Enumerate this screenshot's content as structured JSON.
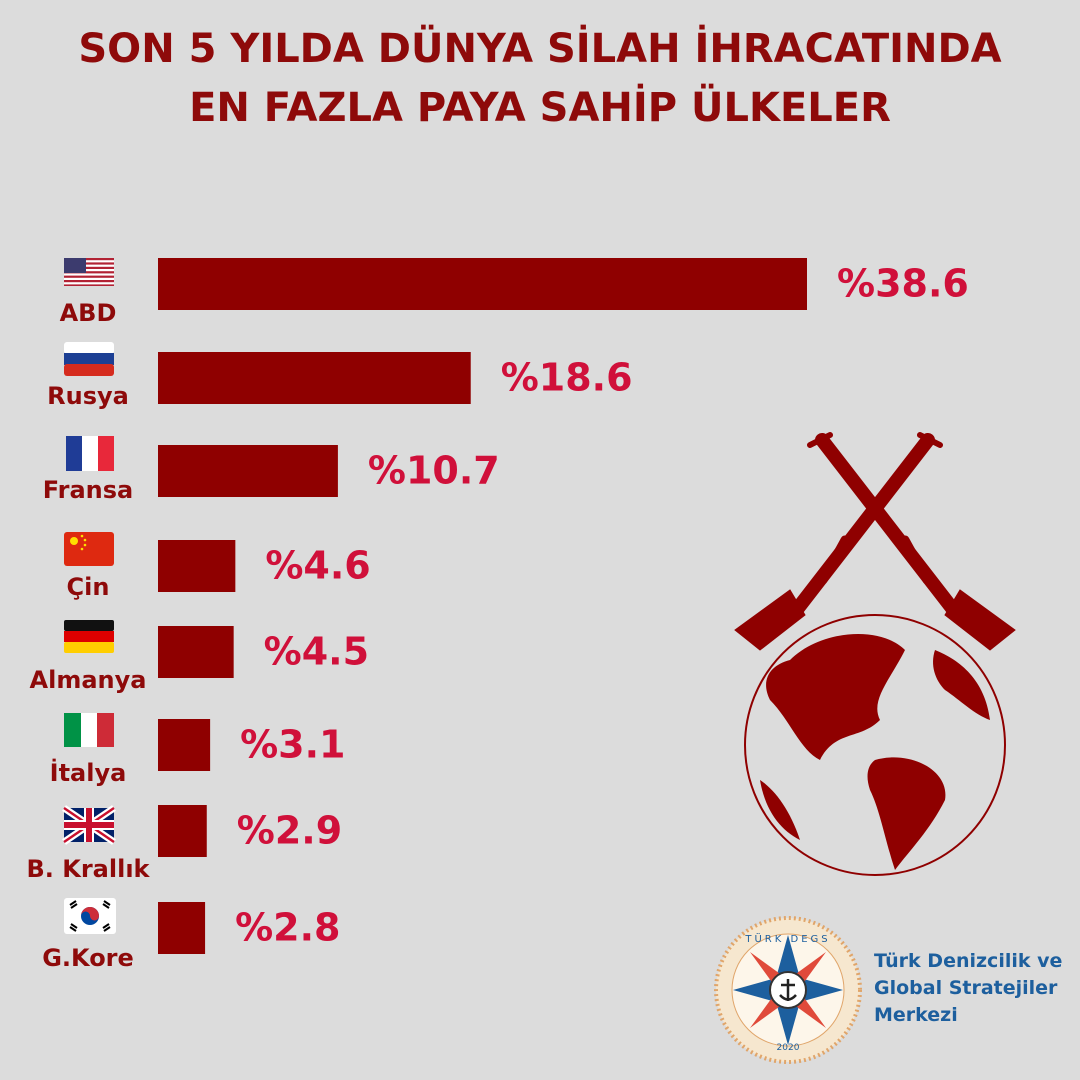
{
  "chart_data": {
    "type": "bar",
    "orientation": "horizontal",
    "title": [
      "SON 5 YILDA DÜNYA SİLAH İHRACATINDA",
      "EN FAZLA PAYA SAHİP ÜLKELER"
    ],
    "categories": [
      "ABD",
      "Rusya",
      "Fransa",
      "Çin",
      "Almanya",
      "İtalya",
      "B. Krallık",
      "G.Kore"
    ],
    "values": [
      38.6,
      18.6,
      10.7,
      4.6,
      4.5,
      3.1,
      2.9,
      2.8
    ],
    "value_labels": [
      "%38.6",
      "%18.6",
      "%10.7",
      "%4.6",
      "%4.5",
      "%3.1",
      "%2.9",
      "%2.8"
    ],
    "color": "#8f0000"
  },
  "logo": {
    "ring_text": "TÜRK DEGS",
    "year": "2020",
    "name": [
      "Türk Denizcilik ve",
      "Global Stratejiler",
      "Merkezi"
    ]
  }
}
